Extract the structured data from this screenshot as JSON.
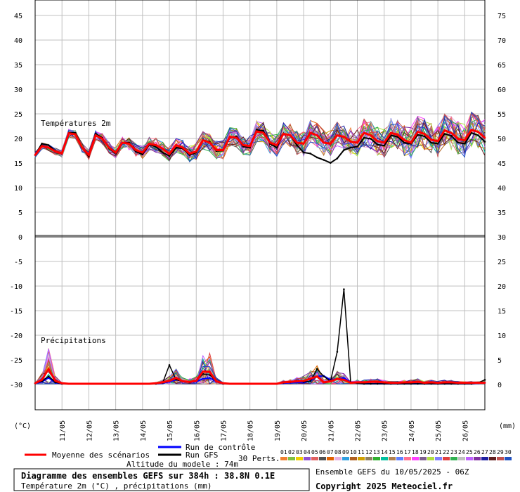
{
  "chart_data": {
    "type": "line",
    "temp_title": "Températures 2m",
    "precip_title": "Précipitations",
    "left_unit": "(°C)",
    "right_unit": "(mm)",
    "dates": [
      "11/05",
      "12/05",
      "13/05",
      "14/05",
      "15/05",
      "16/05",
      "17/05",
      "18/05",
      "19/05",
      "20/05",
      "21/05",
      "22/05",
      "23/05",
      "24/05",
      "25/05",
      "26/05"
    ],
    "left_ticks": [
      "45",
      "40",
      "35",
      "30",
      "25",
      "20",
      "15",
      "10",
      "5",
      "0",
      "-5",
      "-10",
      "-15",
      "-20",
      "-25",
      "-30"
    ],
    "right_ticks": [
      "75",
      "70",
      "65",
      "60",
      "55",
      "50",
      "45",
      "40",
      "35",
      "30",
      "25",
      "20",
      "15",
      "10",
      "5",
      "0"
    ],
    "x_step_hours": 6,
    "temp_mean": [
      16.5,
      18.3,
      18.0,
      17.2,
      16.8,
      20.9,
      20.7,
      18.0,
      16.5,
      20.5,
      19.8,
      18.0,
      17.0,
      19.0,
      18.8,
      17.5,
      17.0,
      18.8,
      18.5,
      17.8,
      16.7,
      18.5,
      18.0,
      16.8,
      17.2,
      19.5,
      19.0,
      17.5,
      17.5,
      20.2,
      20.0,
      18.5,
      18.3,
      21.3,
      21.0,
      19.0,
      18.5,
      20.8,
      20.5,
      19.0,
      18.8,
      21.0,
      20.5,
      19.0,
      18.8,
      20.5,
      20.2,
      19.2,
      19.0,
      21.0,
      20.5,
      19.3,
      19.0,
      21.0,
      20.6,
      19.5,
      19.0,
      21.2,
      20.8,
      19.6,
      19.3,
      21.5,
      21.0,
      19.8,
      19.5,
      21.6,
      21.2,
      20.0
    ],
    "temp_gfs": [
      16.5,
      18.8,
      18.5,
      17.3,
      16.9,
      21.0,
      21.0,
      18.0,
      16.2,
      20.8,
      20.0,
      17.8,
      16.8,
      19.0,
      19.0,
      17.2,
      16.6,
      18.6,
      18.2,
      17.0,
      16.3,
      18.0,
      17.8,
      16.5,
      17.0,
      19.5,
      19.2,
      17.3,
      17.4,
      20.0,
      20.3,
      18.2,
      18.0,
      21.6,
      21.4,
      18.8,
      18.0,
      20.8,
      20.5,
      18.5,
      17.0,
      16.8,
      16.0,
      15.5,
      14.9,
      15.8,
      17.5,
      18.0,
      18.2,
      20.0,
      19.8,
      18.6,
      18.4,
      20.5,
      20.2,
      19.0,
      18.8,
      20.6,
      20.3,
      19.0,
      18.8,
      20.8,
      20.4,
      19.0,
      18.8,
      21.0,
      20.5,
      19.2
    ],
    "precip_mean": [
      0.1,
      0.8,
      3.0,
      0.6,
      0.1,
      0,
      0,
      0,
      0,
      0,
      0,
      0,
      0,
      0,
      0,
      0,
      0,
      0,
      0.1,
      0.3,
      0.6,
      1.2,
      0.5,
      0.4,
      0.6,
      2.5,
      2.4,
      0.5,
      0.1,
      0,
      0,
      0,
      0,
      0,
      0,
      0,
      0,
      0.3,
      0.4,
      0.5,
      0.6,
      1.0,
      1.5,
      0.3,
      0.5,
      1.0,
      0.8,
      0.2,
      0.3,
      0.3,
      0.4,
      0.4,
      0.3,
      0.2,
      0.2,
      0.3,
      0.3,
      0.4,
      0.2,
      0.3,
      0.2,
      0.3,
      0.3,
      0.2,
      0.2,
      0.2,
      0.2,
      0.2
    ],
    "precip_gfs": [
      0.1,
      0.5,
      1.5,
      0.3,
      0,
      0,
      0,
      0,
      0,
      0,
      0,
      0,
      0,
      0,
      0,
      0,
      0,
      0,
      0,
      0.2,
      3.8,
      0.8,
      0.5,
      0.3,
      0.6,
      2.0,
      1.8,
      0.5,
      0,
      0,
      0,
      0,
      0,
      0,
      0,
      0,
      0,
      0.2,
      0.3,
      0.6,
      0.4,
      0.5,
      3.0,
      1.5,
      0.5,
      6.5,
      19.2,
      0.3,
      0.1,
      0,
      0,
      0,
      0,
      0,
      0,
      0,
      0,
      0,
      0,
      0,
      0,
      0,
      0,
      0,
      0,
      0,
      0.2,
      0.8
    ],
    "precip_control": [
      0.1,
      0.4,
      1.2,
      0.2,
      0,
      0,
      0,
      0,
      0,
      0,
      0,
      0,
      0,
      0,
      0,
      0,
      0,
      0,
      0,
      0.1,
      0.4,
      0.8,
      0.6,
      0.3,
      0.4,
      1.0,
      1.2,
      0.4,
      0,
      0,
      0,
      0,
      0,
      0,
      0,
      0,
      0,
      0.1,
      0.2,
      0.3,
      0.2,
      0.6,
      1.5,
      1.6,
      0.8,
      1.0,
      1.2,
      0.3,
      0.1,
      0,
      0,
      0,
      0,
      0,
      0,
      0,
      0,
      0,
      0,
      0,
      0,
      0,
      0,
      0,
      0,
      0,
      0.1,
      0.2
    ],
    "legend": {
      "mean": "Moyenne des scénarios",
      "control": "Run de contrôle",
      "gfs": "Run GFS",
      "perts": "30 Perts.",
      "pert_labels": [
        "01",
        "02",
        "03",
        "04",
        "05",
        "06",
        "07",
        "08",
        "09",
        "10",
        "11",
        "12",
        "13",
        "14",
        "15",
        "16",
        "17",
        "18",
        "19",
        "20",
        "21",
        "22",
        "23",
        "24",
        "25",
        "26",
        "27",
        "28",
        "29",
        "30"
      ],
      "pert_colors": [
        "#f08030",
        "#80c040",
        "#f0d000",
        "#9050d0",
        "#e06060",
        "#505050",
        "#e06000",
        "#e8b0e0",
        "#30a0e0",
        "#b06020",
        "#d0a000",
        "#908060",
        "#30b030",
        "#00c0a0",
        "#b08050",
        "#6080ff",
        "#ff7090",
        "#ff40ff",
        "#806090",
        "#b0e040",
        "#8080ff",
        "#e04040",
        "#30b050",
        "#c0c0c0",
        "#c060ff",
        "#8030a0",
        "#2020a0",
        "#602020",
        "#c05050",
        "#2050c0"
      ]
    },
    "altitude": "Altitude du modele : 74m",
    "footer": {
      "title": "Diagramme des ensembles GEFS sur 384h : 38.8N 0.1E",
      "subtitle": "Température 2m (°C) , précipitations (mm)",
      "run": "Ensemble GEFS du 10/05/2025 - 06Z",
      "copyright": "Copyright 2025 Meteociel.fr"
    },
    "colors": {
      "mean": "#ff0000",
      "gfs": "#000000",
      "control": "#0000ff",
      "grid": "#c0c0c0"
    }
  }
}
